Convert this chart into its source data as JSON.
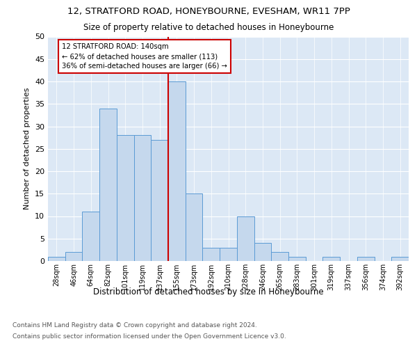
{
  "title1": "12, STRATFORD ROAD, HONEYBOURNE, EVESHAM, WR11 7PP",
  "title2": "Size of property relative to detached houses in Honeybourne",
  "xlabel": "Distribution of detached houses by size in Honeybourne",
  "ylabel": "Number of detached properties",
  "categories": [
    "28sqm",
    "46sqm",
    "64sqm",
    "82sqm",
    "101sqm",
    "119sqm",
    "137sqm",
    "155sqm",
    "173sqm",
    "192sqm",
    "210sqm",
    "228sqm",
    "246sqm",
    "265sqm",
    "283sqm",
    "301sqm",
    "319sqm",
    "337sqm",
    "356sqm",
    "374sqm",
    "392sqm"
  ],
  "values": [
    1,
    2,
    11,
    34,
    28,
    28,
    27,
    40,
    15,
    3,
    3,
    10,
    4,
    2,
    1,
    0,
    1,
    0,
    1,
    0,
    1
  ],
  "bar_color": "#c5d8ed",
  "bar_edge_color": "#5b9bd5",
  "property_line_idx": 7,
  "property_line_label": "12 STRATFORD ROAD: 140sqm",
  "annotation_line1": "← 62% of detached houses are smaller (113)",
  "annotation_line2": "36% of semi-detached houses are larger (66) →",
  "annotation_box_color": "#ffffff",
  "annotation_box_edge": "#cc0000",
  "line_color": "#cc0000",
  "ylim": [
    0,
    50
  ],
  "background_color": "#dce8f5",
  "footer1": "Contains HM Land Registry data © Crown copyright and database right 2024.",
  "footer2": "Contains public sector information licensed under the Open Government Licence v3.0."
}
